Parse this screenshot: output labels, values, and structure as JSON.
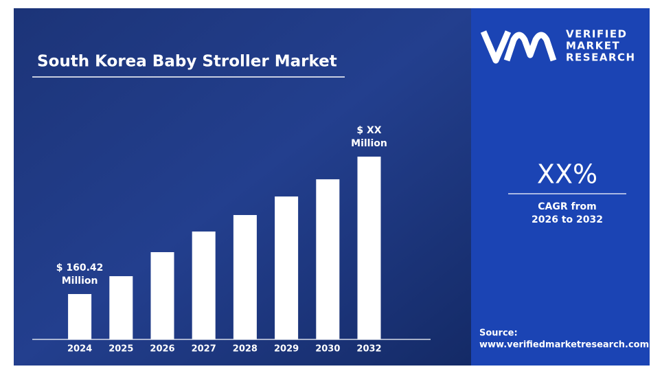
{
  "chart_data": {
    "type": "bar",
    "title": "South Korea Baby Stroller Market",
    "categories": [
      "2024",
      "2025",
      "2026",
      "2027",
      "2028",
      "2029",
      "2030",
      "2032"
    ],
    "values": [
      160.42,
      223.6,
      308.6,
      381.6,
      439.9,
      505.5,
      566.3,
      646.5
    ],
    "value_labels": [
      "$ 160.42 Million",
      null,
      null,
      null,
      null,
      null,
      null,
      "$ XX Million"
    ],
    "color": "#ffffff"
  },
  "logo": [
    "VERIFIED",
    "MARKET",
    "RESEARCH"
  ],
  "cagr": {
    "value": "XX%",
    "label": [
      "CAGR from",
      "2026 to 2032"
    ]
  },
  "source": {
    "label": "Source:",
    "url": "www.verifiedmarketresearch.com"
  }
}
